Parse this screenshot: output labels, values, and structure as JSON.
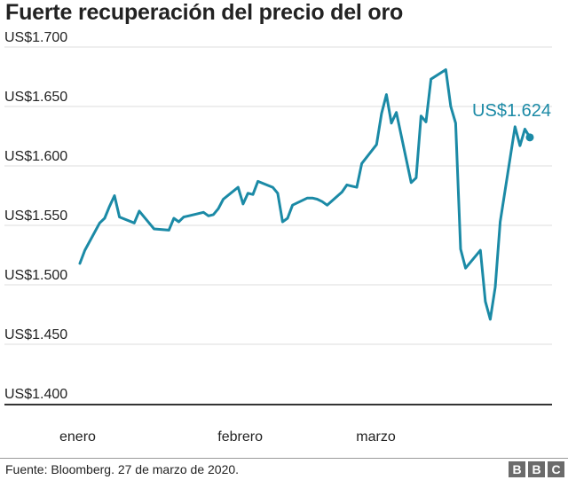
{
  "title": "Fuerte recuperación del precio del oro",
  "source": "Fuente: Bloomberg. 27 de marzo de 2020.",
  "logo": [
    "B",
    "B",
    "C"
  ],
  "colors": {
    "line": "#1b8aa6",
    "text": "#222222",
    "grid": "#dcdcdc",
    "axis": "#333333"
  },
  "chart_data": {
    "type": "line",
    "title": "Fuerte recuperación del precio del oro",
    "xlabel": "",
    "ylabel": "",
    "ylim": [
      1400,
      1700
    ],
    "y_ticks": [
      1400,
      1450,
      1500,
      1550,
      1600,
      1650,
      1700
    ],
    "y_tick_labels": [
      "US$1.400",
      "US$1.450",
      "US$1.500",
      "US$1.550",
      "US$1.600",
      "US$1.650",
      "US$1.700"
    ],
    "grid": true,
    "x_labels": [
      {
        "date": "2020-01-02",
        "label": "enero"
      },
      {
        "date": "2020-02-03",
        "label": "febrero"
      },
      {
        "date": "2020-03-02",
        "label": "marzo"
      }
    ],
    "end_label": "US$1.624",
    "series": [
      {
        "name": "",
        "points": [
          [
            "2020-01-02",
            1518
          ],
          [
            "2020-01-03",
            1529
          ],
          [
            "2020-01-06",
            1552
          ],
          [
            "2020-01-07",
            1556
          ],
          [
            "2020-01-08",
            1566
          ],
          [
            "2020-01-09",
            1575
          ],
          [
            "2020-01-10",
            1557
          ],
          [
            "2020-01-13",
            1552
          ],
          [
            "2020-01-14",
            1562
          ],
          [
            "2020-01-15",
            1557
          ],
          [
            "2020-01-16",
            1552
          ],
          [
            "2020-01-17",
            1547
          ],
          [
            "2020-01-20",
            1546
          ],
          [
            "2020-01-21",
            1556
          ],
          [
            "2020-01-22",
            1553
          ],
          [
            "2020-01-23",
            1557
          ],
          [
            "2020-01-24",
            1558
          ],
          [
            "2020-01-27",
            1561
          ],
          [
            "2020-01-28",
            1558
          ],
          [
            "2020-01-29",
            1559
          ],
          [
            "2020-01-30",
            1564
          ],
          [
            "2020-01-31",
            1572
          ],
          [
            "2020-02-03",
            1582
          ],
          [
            "2020-02-04",
            1568
          ],
          [
            "2020-02-05",
            1577
          ],
          [
            "2020-02-06",
            1576
          ],
          [
            "2020-02-07",
            1587
          ],
          [
            "2020-02-10",
            1582
          ],
          [
            "2020-02-11",
            1577
          ],
          [
            "2020-02-12",
            1553
          ],
          [
            "2020-02-13",
            1556
          ],
          [
            "2020-02-14",
            1567
          ],
          [
            "2020-02-17",
            1573
          ],
          [
            "2020-02-18",
            1573
          ],
          [
            "2020-02-19",
            1572
          ],
          [
            "2020-02-20",
            1570
          ],
          [
            "2020-02-21",
            1567
          ],
          [
            "2020-02-24",
            1578
          ],
          [
            "2020-02-25",
            1584
          ],
          [
            "2020-02-26",
            1583
          ],
          [
            "2020-02-27",
            1582
          ],
          [
            "2020-02-28",
            1602
          ],
          [
            "2020-03-02",
            1618
          ],
          [
            "2020-03-03",
            1644
          ],
          [
            "2020-03-04",
            1660
          ],
          [
            "2020-03-05",
            1636
          ],
          [
            "2020-03-06",
            1645
          ],
          [
            "2020-03-09",
            1586
          ],
          [
            "2020-03-10",
            1590
          ],
          [
            "2020-03-11",
            1642
          ],
          [
            "2020-03-12",
            1637
          ],
          [
            "2020-03-13",
            1673
          ],
          [
            "2020-03-16",
            1681
          ],
          [
            "2020-03-17",
            1650
          ],
          [
            "2020-03-18",
            1636
          ],
          [
            "2020-03-19",
            1530
          ],
          [
            "2020-03-20",
            1514
          ],
          [
            "2020-03-23",
            1529
          ],
          [
            "2020-03-24",
            1486
          ],
          [
            "2020-03-25",
            1471
          ],
          [
            "2020-03-26",
            1498
          ],
          [
            "2020-03-27",
            1553
          ],
          [
            "2020-03-30",
            1633
          ],
          [
            "2020-03-31",
            1617
          ],
          [
            "2020-04-01",
            1631
          ],
          [
            "2020-04-02",
            1624
          ]
        ]
      }
    ]
  }
}
